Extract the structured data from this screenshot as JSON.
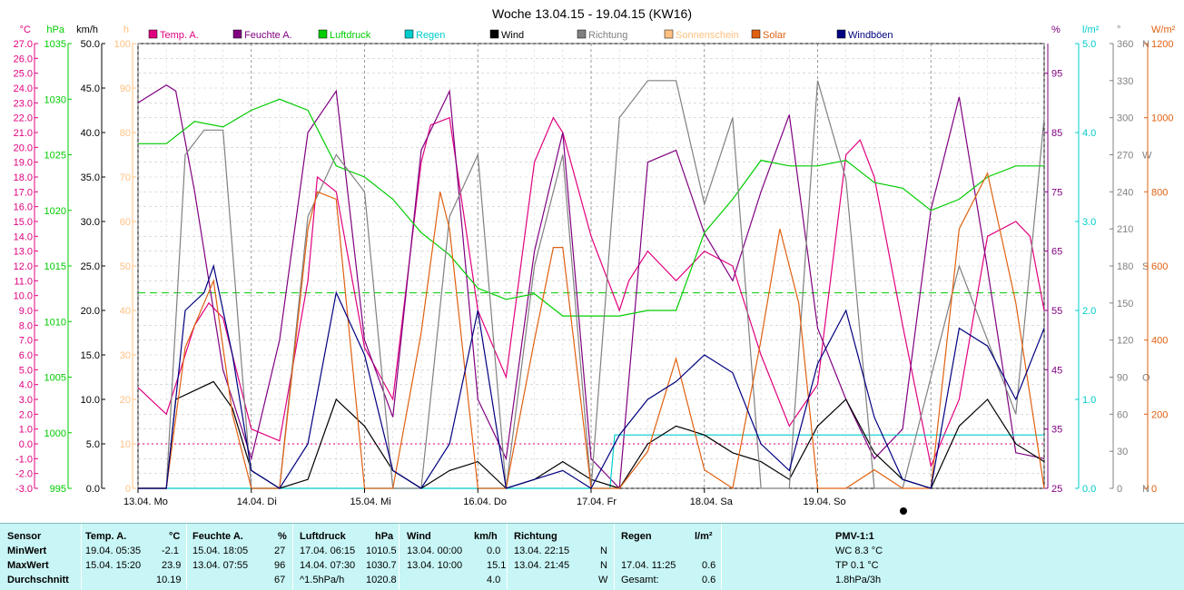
{
  "title": "Woche 13.04.15 - 19.04.15 (KW16)",
  "colors": {
    "temp": "#e0007f",
    "feuchte": "#800080",
    "druck": "#00cc00",
    "regen": "#00cccc",
    "wind": "#000000",
    "richtung": "#808080",
    "sonne": "#ffc080",
    "solar": "#e06010",
    "boeen": "#000080"
  },
  "axes": {
    "temp": {
      "unit": "°C",
      "min": -3,
      "max": 27,
      "step": 1
    },
    "druck": {
      "unit": "hPa",
      "min": 995,
      "max": 1035,
      "step": 5
    },
    "wind": {
      "unit": "km/h",
      "min": 0,
      "max": 50,
      "step": 5
    },
    "sonne": {
      "unit": "h",
      "min": 0,
      "max": 100,
      "step": 10
    },
    "feuchte": {
      "unit": "%",
      "min": 25,
      "max": 100,
      "step": 10
    },
    "regen": {
      "unit": "l/m²",
      "min": 0,
      "max": 5,
      "step": 1
    },
    "richtung": {
      "unit": "°",
      "min": 0,
      "max": 360,
      "step": 30
    },
    "solar": {
      "unit": "W/m²",
      "min": 0,
      "max": 1200,
      "step": 200
    }
  },
  "richtung_labels": {
    "0": "N",
    "90": "O",
    "180": "S",
    "270": "W",
    "360": "N"
  },
  "day_labels": [
    "13.04. Mo",
    "14.04. Di",
    "15.04. Mi",
    "16.04. Do",
    "17.04. Fr",
    "18.04. Sa",
    "19.04. So"
  ],
  "chart_data": {
    "type": "line",
    "x_unit": "hours since 13.04. 00:00",
    "series": [
      {
        "name": "Temp. A.",
        "axis": "temp",
        "points": [
          [
            0,
            3.8
          ],
          [
            6,
            2.0
          ],
          [
            12,
            8.0
          ],
          [
            15,
            9.5
          ],
          [
            18,
            8.5
          ],
          [
            24,
            1.0
          ],
          [
            30,
            0.2
          ],
          [
            36,
            11
          ],
          [
            38,
            18
          ],
          [
            42,
            17
          ],
          [
            48,
            6.5
          ],
          [
            54,
            3.0
          ],
          [
            60,
            19
          ],
          [
            62,
            21.5
          ],
          [
            66,
            22
          ],
          [
            72,
            9
          ],
          [
            78,
            4.5
          ],
          [
            84,
            19
          ],
          [
            88,
            22
          ],
          [
            90,
            21
          ],
          [
            96,
            14
          ],
          [
            102,
            9
          ],
          [
            104,
            11
          ],
          [
            108,
            13
          ],
          [
            114,
            11
          ],
          [
            120,
            13
          ],
          [
            126,
            12
          ],
          [
            132,
            6
          ],
          [
            138,
            1.2
          ],
          [
            144,
            4
          ],
          [
            150,
            19.5
          ],
          [
            153,
            20.5
          ],
          [
            156,
            18
          ],
          [
            162,
            8
          ],
          [
            168,
            -1.5
          ],
          [
            174,
            3
          ],
          [
            180,
            14
          ],
          [
            186,
            15
          ],
          [
            189,
            14
          ],
          [
            192,
            9
          ]
        ]
      },
      {
        "name": "Feuchte A.",
        "axis": "feuchte",
        "points": [
          [
            0,
            90
          ],
          [
            6,
            93
          ],
          [
            8,
            92
          ],
          [
            12,
            75
          ],
          [
            18,
            45
          ],
          [
            24,
            30
          ],
          [
            30,
            50
          ],
          [
            36,
            85
          ],
          [
            42,
            92
          ],
          [
            48,
            50
          ],
          [
            54,
            37
          ],
          [
            60,
            82
          ],
          [
            66,
            92
          ],
          [
            72,
            40
          ],
          [
            78,
            30
          ],
          [
            84,
            65
          ],
          [
            90,
            85
          ],
          [
            96,
            30
          ],
          [
            102,
            25
          ],
          [
            108,
            80
          ],
          [
            114,
            82
          ],
          [
            120,
            68
          ],
          [
            126,
            60
          ],
          [
            132,
            75
          ],
          [
            138,
            88
          ],
          [
            144,
            52
          ],
          [
            150,
            40
          ],
          [
            156,
            30
          ],
          [
            162,
            35
          ],
          [
            168,
            72
          ],
          [
            174,
            91
          ],
          [
            180,
            62
          ],
          [
            186,
            31
          ],
          [
            192,
            30
          ]
        ]
      },
      {
        "name": "Luftdruck",
        "axis": "druck",
        "points": [
          [
            0,
            1026
          ],
          [
            6,
            1026
          ],
          [
            12,
            1028
          ],
          [
            18,
            1027.5
          ],
          [
            24,
            1029
          ],
          [
            30,
            1030
          ],
          [
            36,
            1029
          ],
          [
            42,
            1024
          ],
          [
            48,
            1023
          ],
          [
            54,
            1021
          ],
          [
            60,
            1018
          ],
          [
            66,
            1016
          ],
          [
            72,
            1013
          ],
          [
            78,
            1012
          ],
          [
            84,
            1012.5
          ],
          [
            90,
            1010.5
          ],
          [
            96,
            1010.5
          ],
          [
            102,
            1010.5
          ],
          [
            108,
            1011
          ],
          [
            114,
            1011
          ],
          [
            120,
            1018
          ],
          [
            126,
            1021
          ],
          [
            132,
            1024.5
          ],
          [
            138,
            1024
          ],
          [
            144,
            1024
          ],
          [
            150,
            1024.5
          ],
          [
            156,
            1022.5
          ],
          [
            162,
            1022
          ],
          [
            168,
            1020
          ],
          [
            174,
            1021
          ],
          [
            180,
            1023
          ],
          [
            186,
            1024
          ],
          [
            192,
            1024
          ]
        ]
      },
      {
        "name": "Regen",
        "axis": "regen",
        "points": [
          [
            0,
            0
          ],
          [
            100,
            0
          ],
          [
            101,
            0.6
          ],
          [
            192,
            0.6
          ]
        ]
      },
      {
        "name": "Wind",
        "axis": "wind",
        "points": [
          [
            0,
            0
          ],
          [
            6,
            0
          ],
          [
            8,
            10
          ],
          [
            12,
            11
          ],
          [
            16,
            12
          ],
          [
            20,
            9
          ],
          [
            24,
            2
          ],
          [
            30,
            0
          ],
          [
            36,
            1
          ],
          [
            42,
            10
          ],
          [
            48,
            7
          ],
          [
            54,
            2
          ],
          [
            60,
            0
          ],
          [
            66,
            2
          ],
          [
            72,
            3
          ],
          [
            78,
            0
          ],
          [
            84,
            1
          ],
          [
            90,
            3
          ],
          [
            96,
            1
          ],
          [
            102,
            0
          ],
          [
            108,
            5
          ],
          [
            114,
            7
          ],
          [
            120,
            6
          ],
          [
            126,
            4
          ],
          [
            132,
            3
          ],
          [
            138,
            1
          ],
          [
            144,
            7
          ],
          [
            150,
            10
          ],
          [
            156,
            4
          ],
          [
            162,
            1
          ],
          [
            168,
            0
          ],
          [
            174,
            7
          ],
          [
            180,
            10
          ],
          [
            186,
            5
          ],
          [
            192,
            3
          ]
        ]
      },
      {
        "name": "Richtung",
        "axis": "richtung",
        "points": [
          [
            0,
            0
          ],
          [
            6,
            0
          ],
          [
            10,
            270
          ],
          [
            14,
            290
          ],
          [
            18,
            290
          ],
          [
            24,
            0
          ],
          [
            30,
            0
          ],
          [
            36,
            220
          ],
          [
            42,
            270
          ],
          [
            48,
            240
          ],
          [
            54,
            0
          ],
          [
            60,
            0
          ],
          [
            66,
            220
          ],
          [
            72,
            270
          ],
          [
            78,
            0
          ],
          [
            84,
            180
          ],
          [
            90,
            270
          ],
          [
            96,
            0
          ],
          [
            102,
            300
          ],
          [
            108,
            330
          ],
          [
            114,
            330
          ],
          [
            120,
            230
          ],
          [
            126,
            300
          ],
          [
            132,
            0
          ],
          [
            138,
            0
          ],
          [
            144,
            330
          ],
          [
            150,
            250
          ],
          [
            156,
            0
          ],
          [
            162,
            0
          ],
          [
            168,
            90
          ],
          [
            174,
            180
          ],
          [
            180,
            120
          ],
          [
            186,
            60
          ],
          [
            192,
            300
          ]
        ]
      },
      {
        "name": "Solar",
        "axis": "solar",
        "points": [
          [
            0,
            0
          ],
          [
            6,
            0
          ],
          [
            10,
            380
          ],
          [
            14,
            500
          ],
          [
            16,
            560
          ],
          [
            20,
            200
          ],
          [
            24,
            0
          ],
          [
            30,
            0
          ],
          [
            36,
            700
          ],
          [
            38,
            800
          ],
          [
            42,
            780
          ],
          [
            48,
            0
          ],
          [
            54,
            0
          ],
          [
            60,
            420
          ],
          [
            64,
            800
          ],
          [
            66,
            700
          ],
          [
            72,
            0
          ],
          [
            78,
            0
          ],
          [
            84,
            400
          ],
          [
            88,
            650
          ],
          [
            90,
            650
          ],
          [
            96,
            0
          ],
          [
            102,
            0
          ],
          [
            108,
            100
          ],
          [
            114,
            350
          ],
          [
            120,
            50
          ],
          [
            126,
            0
          ],
          [
            132,
            400
          ],
          [
            136,
            700
          ],
          [
            140,
            500
          ],
          [
            144,
            0
          ],
          [
            150,
            0
          ],
          [
            156,
            50
          ],
          [
            162,
            0
          ],
          [
            168,
            0
          ],
          [
            174,
            700
          ],
          [
            180,
            850
          ],
          [
            186,
            500
          ],
          [
            192,
            0
          ]
        ]
      },
      {
        "name": "Windböen",
        "axis": "wind",
        "points": [
          [
            0,
            0
          ],
          [
            6,
            0
          ],
          [
            10,
            20
          ],
          [
            14,
            22
          ],
          [
            16,
            25
          ],
          [
            20,
            15
          ],
          [
            24,
            2
          ],
          [
            30,
            0
          ],
          [
            36,
            5
          ],
          [
            42,
            22
          ],
          [
            48,
            15
          ],
          [
            54,
            2
          ],
          [
            60,
            0
          ],
          [
            66,
            5
          ],
          [
            72,
            20
          ],
          [
            78,
            0
          ],
          [
            84,
            1
          ],
          [
            90,
            2
          ],
          [
            96,
            0
          ],
          [
            102,
            6
          ],
          [
            108,
            10
          ],
          [
            114,
            12
          ],
          [
            120,
            15
          ],
          [
            126,
            13
          ],
          [
            132,
            5
          ],
          [
            138,
            2
          ],
          [
            144,
            14
          ],
          [
            150,
            20
          ],
          [
            156,
            8
          ],
          [
            162,
            1
          ],
          [
            168,
            0
          ],
          [
            174,
            18
          ],
          [
            180,
            16
          ],
          [
            186,
            10
          ],
          [
            192,
            18
          ]
        ]
      }
    ],
    "reference_lines": [
      {
        "axis": "temp",
        "value": 10.19,
        "color": "#00cc00",
        "style": "dashed"
      },
      {
        "axis": "temp",
        "value": 0,
        "color": "#e0007f",
        "style": "dotted"
      }
    ]
  },
  "stats": {
    "sensor": {
      "h": "Sensor",
      "r1": "MinWert",
      "r2": "MaxWert",
      "r3": "Durchschnitt"
    },
    "temp": {
      "h": "Temp. A.",
      "u": "°C",
      "min_t": "19.04.  05:35",
      "min_v": "-2.1",
      "max_t": "15.04.  15:20",
      "max_v": "23.9",
      "avg": "10.19"
    },
    "feuchte": {
      "h": "Feuchte A.",
      "u": "%",
      "min_t": "15.04.  18:05",
      "min_v": "27",
      "max_t": "13.04.  07:55",
      "max_v": "96",
      "avg": "67"
    },
    "druck": {
      "h": "Luftdruck",
      "u": "hPa",
      "min_t": "17.04.  06:15",
      "min_v": "1010.5",
      "max_t": "14.04.  07:30",
      "max_v": "1030.7",
      "trend": "^1.5hPa/h",
      "avg": "1020.8"
    },
    "wind": {
      "h": "Wind",
      "u": "km/h",
      "min_t": "13.04.  00:00",
      "min_v": "0.0",
      "max_t": "13.04.  10:00",
      "max_v": "15.1",
      "avg": "4.0"
    },
    "richtung": {
      "h": "Richtung",
      "min_t": "13.04.  22:15",
      "min_v": "N",
      "max_t": "13.04.  21:45",
      "max_v": "N",
      "avg": "W"
    },
    "regen": {
      "h": "Regen",
      "u": "l/m²",
      "max_t": "17.04.  11:25",
      "max_v": "0.6",
      "gesamt_l": "Gesamt:",
      "gesamt_v": "0.6"
    },
    "pmv": {
      "h": "PMV-1:1",
      "r1": "WC 8.3 °C",
      "r2": "TP 0.1 °C",
      "r3": "1.8hPa/3h"
    }
  }
}
